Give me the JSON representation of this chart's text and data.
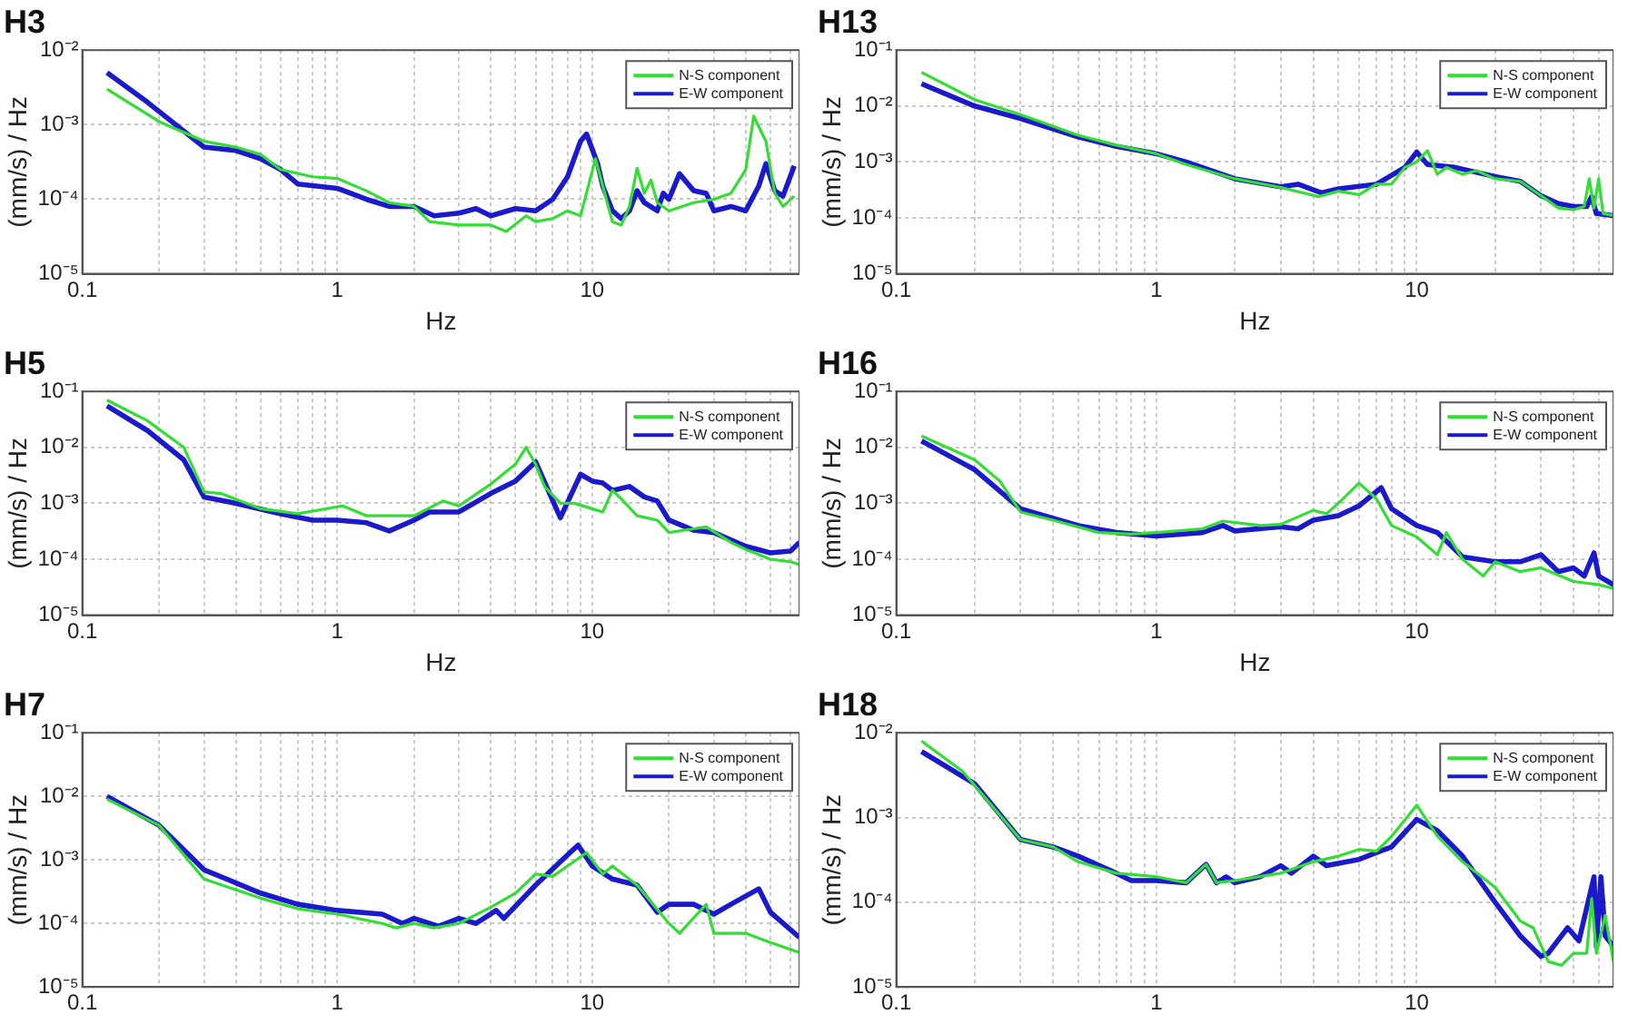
{
  "chart_data": [
    {
      "type": "line",
      "title": "H3",
      "xlabel": "Hz",
      "ylabel": "(mm/s) / Hz",
      "log": "xy",
      "grid": true,
      "legend": "top right",
      "xlim": [
        0.1,
        65
      ],
      "ylim": [
        1e-05,
        0.01
      ],
      "xticks": [
        0.1,
        {
          "value": 0.2,
          "label": null
        },
        {
          "value": 0.3,
          "label": null
        },
        {
          "value": 0.4,
          "label": null
        },
        {
          "value": 0.5,
          "label": null
        },
        {
          "value": 0.6,
          "label": null
        },
        {
          "value": 0.7,
          "label": null
        },
        {
          "value": 0.8,
          "label": null
        },
        {
          "value": 0.9,
          "label": null
        },
        1,
        {
          "value": 2,
          "label": null
        },
        {
          "value": 3,
          "label": null
        },
        {
          "value": 4,
          "label": null
        },
        {
          "value": 5,
          "label": null
        },
        {
          "value": 6,
          "label": null
        },
        {
          "value": 7,
          "label": null
        },
        {
          "value": 8,
          "label": null
        },
        {
          "value": 9,
          "label": null
        },
        10,
        {
          "value": 20,
          "label": null
        },
        {
          "value": 30,
          "label": null
        },
        {
          "value": 40,
          "label": null
        },
        {
          "value": 50,
          "label": null
        },
        {
          "value": 60,
          "label": null
        }
      ],
      "yticks": [
        {
          "value": 1e-05,
          "label": "10⁻⁵"
        },
        {
          "value": 0.0001,
          "label": "10⁻⁴"
        },
        {
          "value": 0.001,
          "label": "10⁻³"
        },
        {
          "value": 0.01,
          "label": "10⁻²"
        }
      ],
      "series": [
        {
          "name": "N-S component",
          "color": "#33dd33",
          "x": [
            0.125,
            0.2,
            0.3,
            0.4,
            0.5,
            0.6,
            0.8,
            1,
            1.3,
            1.6,
            2,
            2.3,
            3,
            4,
            4.6,
            5.5,
            6,
            7,
            8,
            9,
            10.3,
            11,
            12,
            13,
            14,
            15,
            16,
            17,
            18,
            20,
            25,
            30,
            35,
            40,
            43,
            48,
            52,
            56,
            62
          ],
          "values": [
            0.003,
            0.0011,
            0.0006,
            0.0005,
            0.0004,
            0.00025,
            0.0002,
            0.00019,
            0.00013,
            9e-05,
            8e-05,
            5e-05,
            4.5e-05,
            4.5e-05,
            3.7e-05,
            6e-05,
            5e-05,
            5.5e-05,
            7e-05,
            6e-05,
            0.00035,
            0.00015,
            5e-05,
            4.5e-05,
            8e-05,
            0.00026,
            0.00012,
            0.00018,
            9e-05,
            7e-05,
            9e-05,
            0.0001,
            0.00012,
            0.00025,
            0.0013,
            0.0006,
            0.00012,
            8e-05,
            0.00011
          ]
        },
        {
          "name": "E-W component",
          "color": "#1a1acc",
          "x": [
            0.125,
            0.18,
            0.3,
            0.4,
            0.5,
            0.6,
            0.7,
            1,
            1.3,
            1.6,
            2,
            2.4,
            3,
            3.5,
            4,
            5,
            6,
            7,
            8,
            9,
            9.5,
            10.5,
            11,
            12,
            13,
            14,
            15,
            16,
            18,
            19,
            20,
            22,
            25,
            28,
            30,
            35,
            40,
            45,
            48,
            52,
            56,
            62
          ],
          "values": [
            0.005,
            0.002,
            0.0005,
            0.00045,
            0.00035,
            0.00025,
            0.00016,
            0.00014,
            0.0001,
            8e-05,
            8e-05,
            6e-05,
            6.5e-05,
            7.5e-05,
            6e-05,
            7.5e-05,
            7e-05,
            0.0001,
            0.0002,
            0.0006,
            0.00075,
            0.0003,
            0.00015,
            7e-05,
            5.5e-05,
            7e-05,
            0.00013,
            9e-05,
            7e-05,
            0.00012,
            0.0001,
            0.00022,
            0.00013,
            0.00012,
            7e-05,
            8e-05,
            7e-05,
            0.00015,
            0.0003,
            0.00013,
            0.00011,
            0.00028
          ]
        }
      ]
    },
    {
      "type": "line",
      "title": "H13",
      "xlabel": "Hz",
      "ylabel": "(mm/s) / Hz",
      "log": "xy",
      "grid": true,
      "legend": "top right",
      "xlim": [
        0.1,
        57
      ],
      "ylim": [
        1e-05,
        0.1
      ],
      "xticks": [
        0.1,
        {
          "value": 0.2,
          "label": null
        },
        {
          "value": 0.3,
          "label": null
        },
        {
          "value": 0.4,
          "label": null
        },
        {
          "value": 0.5,
          "label": null
        },
        {
          "value": 0.6,
          "label": null
        },
        {
          "value": 0.7,
          "label": null
        },
        {
          "value": 0.8,
          "label": null
        },
        {
          "value": 0.9,
          "label": null
        },
        1,
        {
          "value": 2,
          "label": null
        },
        {
          "value": 3,
          "label": null
        },
        {
          "value": 4,
          "label": null
        },
        {
          "value": 5,
          "label": null
        },
        {
          "value": 6,
          "label": null
        },
        {
          "value": 7,
          "label": null
        },
        {
          "value": 8,
          "label": null
        },
        {
          "value": 9,
          "label": null
        },
        10,
        {
          "value": 20,
          "label": null
        },
        {
          "value": 30,
          "label": null
        },
        {
          "value": 40,
          "label": null
        },
        {
          "value": 50,
          "label": null
        }
      ],
      "yticks": [
        {
          "value": 1e-05,
          "label": "10⁻⁵"
        },
        {
          "value": 0.0001,
          "label": "10⁻⁴"
        },
        {
          "value": 0.001,
          "label": "10⁻³"
        },
        {
          "value": 0.01,
          "label": "10⁻²"
        },
        {
          "value": 0.1,
          "label": "10⁻¹"
        }
      ],
      "series": [
        {
          "name": "N-S component",
          "color": "#33dd33",
          "x": [
            0.125,
            0.2,
            0.3,
            0.5,
            0.7,
            1,
            1.3,
            2,
            3,
            4.2,
            5,
            6,
            7,
            8,
            9,
            10,
            11,
            12,
            13,
            15,
            17,
            20,
            25,
            30,
            35,
            40,
            44,
            46,
            48,
            50,
            52,
            57
          ],
          "values": [
            0.04,
            0.013,
            0.007,
            0.003,
            0.002,
            0.0014,
            0.0009,
            0.0005,
            0.00035,
            0.00024,
            0.0003,
            0.00026,
            0.0004,
            0.0004,
            0.0008,
            0.001,
            0.0016,
            0.0006,
            0.0008,
            0.0006,
            0.0007,
            0.0005,
            0.00045,
            0.00025,
            0.00015,
            0.00014,
            0.00016,
            0.0005,
            0.00015,
            0.0005,
            0.00012,
            0.00011
          ]
        },
        {
          "name": "E-W component",
          "color": "#1a1acc",
          "x": [
            0.125,
            0.2,
            0.3,
            0.5,
            0.7,
            1,
            1.3,
            2,
            3,
            3.5,
            4.3,
            5,
            7,
            9,
            10,
            11,
            14,
            20,
            25,
            30,
            35,
            40,
            45,
            47,
            49,
            57
          ],
          "values": [
            0.025,
            0.01,
            0.006,
            0.0028,
            0.0019,
            0.0014,
            0.001,
            0.0005,
            0.00036,
            0.0004,
            0.00028,
            0.00033,
            0.0004,
            0.0008,
            0.0015,
            0.0009,
            0.0008,
            0.00055,
            0.00045,
            0.00025,
            0.00018,
            0.00016,
            0.00016,
            0.00024,
            0.00012,
            0.00011
          ]
        }
      ]
    },
    {
      "type": "line",
      "title": "H5",
      "xlabel": "Hz",
      "ylabel": "(mm/s) / Hz",
      "log": "xy",
      "grid": true,
      "legend": "top right",
      "xlim": [
        0.1,
        65
      ],
      "ylim": [
        1e-05,
        0.1
      ],
      "xticks": [
        0.1,
        {
          "value": 0.2,
          "label": null
        },
        {
          "value": 0.3,
          "label": null
        },
        {
          "value": 0.4,
          "label": null
        },
        {
          "value": 0.5,
          "label": null
        },
        {
          "value": 0.6,
          "label": null
        },
        {
          "value": 0.7,
          "label": null
        },
        {
          "value": 0.8,
          "label": null
        },
        {
          "value": 0.9,
          "label": null
        },
        1,
        {
          "value": 2,
          "label": null
        },
        {
          "value": 3,
          "label": null
        },
        {
          "value": 4,
          "label": null
        },
        {
          "value": 5,
          "label": null
        },
        {
          "value": 6,
          "label": null
        },
        {
          "value": 7,
          "label": null
        },
        {
          "value": 8,
          "label": null
        },
        {
          "value": 9,
          "label": null
        },
        10,
        {
          "value": 20,
          "label": null
        },
        {
          "value": 30,
          "label": null
        },
        {
          "value": 40,
          "label": null
        },
        {
          "value": 50,
          "label": null
        },
        {
          "value": 60,
          "label": null
        }
      ],
      "yticks": [
        {
          "value": 1e-05,
          "label": "10⁻⁵"
        },
        {
          "value": 0.0001,
          "label": "10⁻⁴"
        },
        {
          "value": 0.001,
          "label": "10⁻³"
        },
        {
          "value": 0.01,
          "label": "10⁻²"
        },
        {
          "value": 0.1,
          "label": "10⁻¹"
        }
      ],
      "series": [
        {
          "name": "N-S component",
          "color": "#33dd33",
          "x": [
            0.125,
            0.18,
            0.25,
            0.3,
            0.35,
            0.5,
            0.7,
            1.05,
            1.3,
            1.5,
            2,
            2.6,
            3,
            4,
            5,
            5.5,
            6,
            6.5,
            7.5,
            8.5,
            10,
            11,
            12,
            13,
            15,
            18,
            20,
            25,
            28,
            35,
            40,
            50,
            60,
            65
          ],
          "values": [
            0.07,
            0.03,
            0.01,
            0.0016,
            0.0015,
            0.0008,
            0.00065,
            0.0009,
            0.0006,
            0.0006,
            0.0006,
            0.0011,
            0.0009,
            0.0022,
            0.005,
            0.01,
            0.005,
            0.002,
            0.001,
            0.001,
            0.0008,
            0.0007,
            0.0017,
            0.0012,
            0.0006,
            0.0005,
            0.0003,
            0.00035,
            0.00038,
            0.0002,
            0.00015,
            0.0001,
            9e-05,
            8e-05
          ]
        },
        {
          "name": "E-W component",
          "color": "#1a1acc",
          "x": [
            0.125,
            0.18,
            0.25,
            0.3,
            0.4,
            0.6,
            0.8,
            1,
            1.3,
            1.6,
            2,
            2.3,
            3,
            4,
            5,
            6,
            7.5,
            9,
            10,
            11,
            12,
            14,
            16,
            18,
            20,
            25,
            30,
            35,
            40,
            50,
            60,
            65
          ],
          "values": [
            0.055,
            0.02,
            0.006,
            0.0013,
            0.001,
            0.00065,
            0.0005,
            0.0005,
            0.00045,
            0.00032,
            0.0005,
            0.0007,
            0.0007,
            0.0015,
            0.0025,
            0.0055,
            0.00055,
            0.0033,
            0.0025,
            0.0023,
            0.0017,
            0.002,
            0.0013,
            0.0011,
            0.0005,
            0.00033,
            0.0003,
            0.00022,
            0.00017,
            0.00013,
            0.00014,
            0.0002
          ]
        }
      ]
    },
    {
      "type": "line",
      "title": "H16",
      "xlabel": "Hz",
      "ylabel": "(mm/s) / Hz",
      "log": "xy",
      "grid": true,
      "legend": "top right",
      "xlim": [
        0.1,
        57
      ],
      "ylim": [
        1e-05,
        0.1
      ],
      "xticks": [
        0.1,
        {
          "value": 0.2,
          "label": null
        },
        {
          "value": 0.3,
          "label": null
        },
        {
          "value": 0.4,
          "label": null
        },
        {
          "value": 0.5,
          "label": null
        },
        {
          "value": 0.6,
          "label": null
        },
        {
          "value": 0.7,
          "label": null
        },
        {
          "value": 0.8,
          "label": null
        },
        {
          "value": 0.9,
          "label": null
        },
        1,
        {
          "value": 2,
          "label": null
        },
        {
          "value": 3,
          "label": null
        },
        {
          "value": 4,
          "label": null
        },
        {
          "value": 5,
          "label": null
        },
        {
          "value": 6,
          "label": null
        },
        {
          "value": 7,
          "label": null
        },
        {
          "value": 8,
          "label": null
        },
        {
          "value": 9,
          "label": null
        },
        10,
        {
          "value": 20,
          "label": null
        },
        {
          "value": 30,
          "label": null
        },
        {
          "value": 40,
          "label": null
        },
        {
          "value": 50,
          "label": null
        }
      ],
      "yticks": [
        {
          "value": 1e-05,
          "label": "10⁻⁵"
        },
        {
          "value": 0.0001,
          "label": "10⁻⁴"
        },
        {
          "value": 0.001,
          "label": "10⁻³"
        },
        {
          "value": 0.01,
          "label": "10⁻²"
        },
        {
          "value": 0.1,
          "label": "10⁻¹"
        }
      ],
      "series": [
        {
          "name": "N-S component",
          "color": "#33dd33",
          "x": [
            0.125,
            0.2,
            0.25,
            0.3,
            0.4,
            0.6,
            0.8,
            1,
            1.5,
            1.8,
            2.5,
            3,
            4,
            4.5,
            5,
            6,
            7,
            8,
            10,
            12,
            13,
            15,
            18,
            20,
            25,
            30,
            40,
            50,
            57
          ],
          "values": [
            0.016,
            0.006,
            0.0025,
            0.0007,
            0.0005,
            0.0003,
            0.00028,
            0.0003,
            0.00035,
            0.00048,
            0.0004,
            0.00042,
            0.00075,
            0.00065,
            0.001,
            0.0023,
            0.0012,
            0.0004,
            0.00025,
            0.00012,
            0.0003,
            0.0001,
            5e-05,
            9e-05,
            6e-05,
            7e-05,
            4e-05,
            3.5e-05,
            3e-05
          ]
        },
        {
          "name": "E-W component",
          "color": "#1a1acc",
          "x": [
            0.125,
            0.2,
            0.3,
            0.5,
            0.7,
            1,
            1.5,
            1.8,
            2,
            3,
            3.5,
            4,
            5,
            6,
            7.3,
            8,
            10,
            12,
            15,
            20,
            25,
            30,
            35,
            40,
            44,
            48,
            50,
            57
          ],
          "values": [
            0.013,
            0.004,
            0.0008,
            0.0004,
            0.0003,
            0.00026,
            0.0003,
            0.0004,
            0.00032,
            0.00038,
            0.00035,
            0.0005,
            0.0006,
            0.0009,
            0.0019,
            0.0008,
            0.0004,
            0.0003,
            0.00011,
            9e-05,
            9e-05,
            0.00012,
            6e-05,
            7e-05,
            5e-05,
            0.00013,
            5e-05,
            3.5e-05
          ]
        }
      ]
    },
    {
      "type": "line",
      "title": "H7",
      "ylabel": "(mm/s) / Hz",
      "log": "xy",
      "grid": true,
      "legend": "top right",
      "xlim": [
        0.1,
        65
      ],
      "ylim": [
        1e-05,
        0.1
      ],
      "xticks": [
        0.1,
        {
          "value": 0.2,
          "label": null
        },
        {
          "value": 0.3,
          "label": null
        },
        {
          "value": 0.4,
          "label": null
        },
        {
          "value": 0.5,
          "label": null
        },
        {
          "value": 0.6,
          "label": null
        },
        {
          "value": 0.7,
          "label": null
        },
        {
          "value": 0.8,
          "label": null
        },
        {
          "value": 0.9,
          "label": null
        },
        1,
        {
          "value": 2,
          "label": null
        },
        {
          "value": 3,
          "label": null
        },
        {
          "value": 4,
          "label": null
        },
        {
          "value": 5,
          "label": null
        },
        {
          "value": 6,
          "label": null
        },
        {
          "value": 7,
          "label": null
        },
        {
          "value": 8,
          "label": null
        },
        {
          "value": 9,
          "label": null
        },
        10,
        {
          "value": 20,
          "label": null
        },
        {
          "value": 30,
          "label": null
        },
        {
          "value": 40,
          "label": null
        },
        {
          "value": 50,
          "label": null
        },
        {
          "value": 60,
          "label": null
        }
      ],
      "yticks": [
        {
          "value": 1e-05,
          "label": "10⁻⁵"
        },
        {
          "value": 0.0001,
          "label": "10⁻⁴"
        },
        {
          "value": 0.001,
          "label": "10⁻³"
        },
        {
          "value": 0.01,
          "label": "10⁻²"
        },
        {
          "value": 0.1,
          "label": "10⁻¹"
        }
      ],
      "series": [
        {
          "name": "N-S component",
          "color": "#33dd33",
          "x": [
            0.125,
            0.2,
            0.3,
            0.5,
            0.7,
            1,
            1.5,
            1.7,
            2,
            2.4,
            3,
            4,
            5,
            6,
            7,
            8,
            9.5,
            11,
            12,
            15,
            20,
            22,
            28,
            30,
            40,
            50,
            65
          ],
          "values": [
            0.009,
            0.0035,
            0.0005,
            0.00025,
            0.00017,
            0.00014,
            0.0001,
            8.5e-05,
            0.0001,
            8.5e-05,
            0.0001,
            0.00018,
            0.0003,
            0.0006,
            0.00055,
            0.0008,
            0.0013,
            0.0006,
            0.0008,
            0.0004,
            0.0001,
            7e-05,
            0.0002,
            7e-05,
            7e-05,
            5e-05,
            3.5e-05
          ]
        },
        {
          "name": "E-W component",
          "color": "#1a1acc",
          "x": [
            0.125,
            0.2,
            0.3,
            0.5,
            0.7,
            1,
            1.5,
            1.8,
            2,
            2.5,
            3,
            3.5,
            4.2,
            4.5,
            6,
            8,
            8.8,
            10,
            12,
            15,
            18,
            20,
            25,
            30,
            35,
            45,
            50,
            65
          ],
          "values": [
            0.01,
            0.0035,
            0.0007,
            0.0003,
            0.0002,
            0.00016,
            0.00014,
            0.0001,
            0.00012,
            9e-05,
            0.00012,
            0.0001,
            0.00016,
            0.00012,
            0.0004,
            0.0012,
            0.0017,
            0.0008,
            0.0005,
            0.0004,
            0.00015,
            0.0002,
            0.0002,
            0.00014,
            0.0002,
            0.00035,
            0.00015,
            6e-05
          ]
        }
      ]
    },
    {
      "type": "line",
      "title": "H18",
      "ylabel": "(mm/s) / Hz",
      "log": "xy",
      "grid": true,
      "legend": "top right",
      "xlim": [
        0.1,
        57
      ],
      "ylim": [
        1e-05,
        0.01
      ],
      "xticks": [
        0.1,
        {
          "value": 0.2,
          "label": null
        },
        {
          "value": 0.3,
          "label": null
        },
        {
          "value": 0.4,
          "label": null
        },
        {
          "value": 0.5,
          "label": null
        },
        {
          "value": 0.6,
          "label": null
        },
        {
          "value": 0.7,
          "label": null
        },
        {
          "value": 0.8,
          "label": null
        },
        {
          "value": 0.9,
          "label": null
        },
        1,
        {
          "value": 2,
          "label": null
        },
        {
          "value": 3,
          "label": null
        },
        {
          "value": 4,
          "label": null
        },
        {
          "value": 5,
          "label": null
        },
        {
          "value": 6,
          "label": null
        },
        {
          "value": 7,
          "label": null
        },
        {
          "value": 8,
          "label": null
        },
        {
          "value": 9,
          "label": null
        },
        10,
        {
          "value": 20,
          "label": null
        },
        {
          "value": 30,
          "label": null
        },
        {
          "value": 40,
          "label": null
        },
        {
          "value": 50,
          "label": null
        }
      ],
      "yticks": [
        {
          "value": 1e-05,
          "label": "10⁻⁵"
        },
        {
          "value": 0.0001,
          "label": "10⁻⁴"
        },
        {
          "value": 0.001,
          "label": "10⁻³"
        },
        {
          "value": 0.01,
          "label": "10⁻²"
        }
      ],
      "series": [
        {
          "name": "N-S component",
          "color": "#33dd33",
          "x": [
            0.125,
            0.18,
            0.3,
            0.4,
            0.5,
            0.7,
            1,
            1.3,
            1.55,
            1.7,
            2,
            3,
            4,
            5,
            6,
            7,
            8,
            10,
            12,
            15,
            20,
            25,
            28,
            32,
            36,
            40,
            45,
            47,
            49,
            53,
            57
          ],
          "values": [
            0.008,
            0.0035,
            0.00055,
            0.00045,
            0.0003,
            0.00022,
            0.0002,
            0.00017,
            0.00028,
            0.00017,
            0.00018,
            0.00022,
            0.0003,
            0.00035,
            0.00042,
            0.0004,
            0.0006,
            0.0014,
            0.0006,
            0.0003,
            0.00015,
            6e-05,
            5e-05,
            2e-05,
            1.8e-05,
            2.5e-05,
            2.5e-05,
            0.00011,
            2.5e-05,
            7e-05,
            2e-05
          ]
        },
        {
          "name": "E-W component",
          "color": "#1a1acc",
          "x": [
            0.125,
            0.2,
            0.3,
            0.4,
            0.5,
            0.7,
            0.8,
            1,
            1.3,
            1.55,
            1.7,
            1.85,
            2,
            2.5,
            3,
            3.3,
            4,
            4.5,
            6,
            8,
            10,
            12,
            15,
            20,
            25,
            30,
            32,
            38,
            42,
            48,
            49,
            51,
            53,
            57
          ],
          "values": [
            0.006,
            0.0025,
            0.00055,
            0.00045,
            0.00035,
            0.00022,
            0.00018,
            0.00018,
            0.00017,
            0.00028,
            0.00017,
            0.0002,
            0.00017,
            0.0002,
            0.00027,
            0.00022,
            0.00035,
            0.00027,
            0.00032,
            0.00045,
            0.00095,
            0.0007,
            0.00035,
            0.0001,
            4e-05,
            2.3e-05,
            2.5e-05,
            5e-05,
            3.5e-05,
            0.0002,
            3e-05,
            0.0002,
            4e-05,
            3e-05
          ]
        }
      ]
    }
  ]
}
